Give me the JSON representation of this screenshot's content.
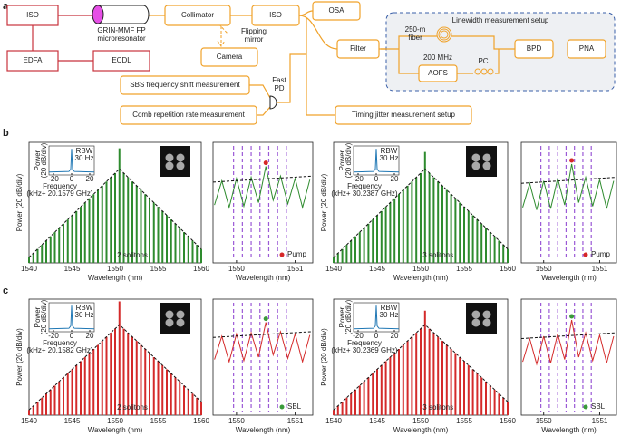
{
  "panel_labels": [
    "a",
    "b",
    "c"
  ],
  "diagram": {
    "nodes": [
      {
        "label": "ISO"
      },
      {
        "label": "EDFA"
      },
      {
        "label": "ECDL"
      },
      {
        "lines": [
          "GRIN-MMF FP",
          "microresonator"
        ]
      },
      {
        "label": "Collimator"
      },
      {
        "label": "ISO"
      },
      {
        "label": "OSA"
      },
      {
        "lines": [
          "Flipping",
          "mirror"
        ]
      },
      {
        "label": "Camera"
      },
      {
        "label": "Filter"
      },
      {
        "label": "Linewidth measurement setup"
      },
      {
        "lines": [
          "250-m",
          "fiber"
        ]
      },
      {
        "label": "200 MHz"
      },
      {
        "label": "AOFS"
      },
      {
        "label": "PC"
      },
      {
        "label": "BPD"
      },
      {
        "label": "PNA"
      },
      {
        "label": "SBS frequency shift measurement"
      },
      {
        "label": "Comb repetition rate measurement"
      },
      {
        "lines": [
          "Fast",
          "PD"
        ]
      },
      {
        "label": "Timing jitter measurement setup"
      }
    ]
  },
  "chart_data": [
    {
      "type": "comb",
      "color": "#2e8b2e",
      "xlabel": "Wavelength (nm)",
      "ylabel": "Power (20 dB/div)",
      "annotation": "2 solitons",
      "xlim": [
        1540,
        1560
      ],
      "ylim": [
        0,
        100
      ],
      "xticks": [
        1540,
        1545,
        1550,
        1555,
        1560
      ],
      "x": [
        1540,
        1540.5,
        1541,
        1541.5,
        1542,
        1542.5,
        1543,
        1543.5,
        1544,
        1544.5,
        1545,
        1545.5,
        1546,
        1546.5,
        1547,
        1547.5,
        1548,
        1548.5,
        1549,
        1549.5,
        1550,
        1550.5,
        1551,
        1551.5,
        1552,
        1552.5,
        1553,
        1553.5,
        1554,
        1554.5,
        1555,
        1555.5,
        1556,
        1556.5,
        1557,
        1557.5,
        1558,
        1558.5,
        1559,
        1559.5,
        1560
      ],
      "values": [
        4.5,
        8,
        11.5,
        15,
        18.5,
        22,
        25.5,
        29,
        32.5,
        36,
        39.5,
        43,
        46.5,
        50,
        53.5,
        57,
        60.5,
        64,
        67.5,
        71,
        74.5,
        95,
        74.5,
        71,
        67.5,
        64,
        60.5,
        57,
        53.5,
        50,
        46.5,
        43,
        39.5,
        36,
        32.5,
        29,
        25.5,
        22,
        18.5,
        15,
        11.5
      ],
      "fit": {
        "x": [
          1540,
          1550.5,
          1560
        ],
        "values": [
          4.5,
          78,
          11.5
        ]
      },
      "inset": {
        "type": "line",
        "color": "#1f77b4",
        "x": [
          -25,
          -3,
          -1,
          0,
          1,
          3,
          25
        ],
        "values": [
          10,
          12,
          20,
          90,
          20,
          12,
          10
        ],
        "xlim": [
          -25,
          25
        ],
        "ylim": [
          0,
          100
        ],
        "xticks": [
          -20,
          0,
          20
        ],
        "ylabel": [
          "Power",
          "(20 dB/div)"
        ],
        "xlabel": [
          "Frequency",
          "(kHz+ 20.1579 GHz)"
        ],
        "text": [
          "RBW",
          "30 Hz"
        ]
      }
    },
    {
      "type": "line",
      "color": "#2e8b2e",
      "xlabel": "Wavelength (nm)",
      "xlim": [
        1549.6,
        1551.3
      ],
      "ylim": [
        0,
        100
      ],
      "xticks": [
        1550,
        1551
      ],
      "x": [
        1549.625,
        1549.75,
        1549.875,
        1550,
        1550.125,
        1550.25,
        1550.375,
        1550.5,
        1550.625,
        1550.75,
        1550.875,
        1551,
        1551.125,
        1551.25
      ],
      "values": [
        48,
        68,
        46,
        70,
        47,
        71,
        50,
        80,
        52,
        72,
        49,
        70,
        46,
        69
      ],
      "fit": {
        "x": [
          1549.6,
          1551.3
        ],
        "values": [
          67,
          72
        ]
      },
      "vlines": [
        1549.95,
        1550.1,
        1550.25,
        1550.4,
        1550.55,
        1550.7,
        1550.85
      ],
      "vline_color": "#9b59d6",
      "marker": {
        "name": "Pump",
        "x": 1550.5,
        "value": 80,
        "color": "#d62728"
      }
    },
    {
      "type": "comb",
      "color": "#2e8b2e",
      "xlabel": "Wavelength (nm)",
      "ylabel": "Power (20 dB/div)",
      "annotation": "3 solitons",
      "xlim": [
        1540,
        1560
      ],
      "ylim": [
        0,
        100
      ],
      "xticks": [
        1540,
        1545,
        1550,
        1555,
        1560
      ],
      "x": [
        1540,
        1540.5,
        1541,
        1541.5,
        1542,
        1542.5,
        1543,
        1543.5,
        1544,
        1544.5,
        1545,
        1545.5,
        1546,
        1546.5,
        1547,
        1547.5,
        1548,
        1548.5,
        1549,
        1549.5,
        1550,
        1550.5,
        1551,
        1551.5,
        1552,
        1552.5,
        1553,
        1553.5,
        1554,
        1554.5,
        1555,
        1555.5,
        1556,
        1556.5,
        1557,
        1557.5,
        1558,
        1558.5,
        1559,
        1559.5,
        1560
      ],
      "values": [
        4.5,
        8,
        11.5,
        15,
        18.5,
        22,
        25.5,
        29,
        32.5,
        36,
        39.5,
        43,
        46.5,
        50,
        53.5,
        57,
        60.5,
        64,
        67.5,
        71,
        74.5,
        92,
        74.5,
        71,
        67.5,
        64,
        60.5,
        57,
        53.5,
        50,
        46.5,
        43,
        39.5,
        36,
        32.5,
        29,
        25.5,
        22,
        18.5,
        15,
        11.5
      ],
      "fit": {
        "x": [
          1540,
          1550.5,
          1560
        ],
        "values": [
          4.5,
          78,
          11.5
        ]
      },
      "inset": {
        "type": "line",
        "color": "#1f77b4",
        "x": [
          -25,
          -3,
          -1,
          0,
          1,
          3,
          25
        ],
        "values": [
          10,
          12,
          20,
          90,
          20,
          12,
          10
        ],
        "xlim": [
          -25,
          25
        ],
        "ylim": [
          0,
          100
        ],
        "xticks": [
          -20,
          0,
          20
        ],
        "ylabel": [
          "Power",
          "(20 dB/div)"
        ],
        "xlabel": [
          "Frequency",
          "(kHz+ 30.2387 GHz)"
        ],
        "text": [
          "RBW",
          "30 Hz"
        ]
      }
    },
    {
      "type": "line",
      "color": "#2e8b2e",
      "xlabel": "Wavelength (nm)",
      "xlim": [
        1549.6,
        1551.3
      ],
      "ylim": [
        0,
        100
      ],
      "xticks": [
        1550,
        1551
      ],
      "x": [
        1549.625,
        1549.75,
        1549.875,
        1550,
        1550.125,
        1550.25,
        1550.375,
        1550.5,
        1550.625,
        1550.75,
        1550.875,
        1551,
        1551.125,
        1551.25
      ],
      "values": [
        46,
        66,
        44,
        68,
        45,
        70,
        48,
        82,
        50,
        71,
        47,
        69,
        45,
        68
      ],
      "fit": {
        "x": [
          1549.6,
          1551.3
        ],
        "values": [
          66,
          71
        ]
      },
      "vlines": [
        1549.95,
        1550.1,
        1550.25,
        1550.4,
        1550.55,
        1550.7,
        1550.85
      ],
      "vline_color": "#9b59d6",
      "marker": {
        "name": "Pump",
        "x": 1550.5,
        "value": 82,
        "color": "#d62728"
      }
    },
    {
      "type": "comb",
      "color": "#d42a2a",
      "xlabel": "Wavelength (nm)",
      "ylabel": "Power (20 dB/div)",
      "annotation": "2 solitons",
      "xlim": [
        1540,
        1560
      ],
      "ylim": [
        0,
        100
      ],
      "xticks": [
        1540,
        1545,
        1550,
        1555,
        1560
      ],
      "x": [
        1540,
        1540.5,
        1541,
        1541.5,
        1542,
        1542.5,
        1543,
        1543.5,
        1544,
        1544.5,
        1545,
        1545.5,
        1546,
        1546.5,
        1547,
        1547.5,
        1548,
        1548.5,
        1549,
        1549.5,
        1550,
        1550.5,
        1551,
        1551.5,
        1552,
        1552.5,
        1553,
        1553.5,
        1554,
        1554.5,
        1555,
        1555.5,
        1556,
        1556.5,
        1557,
        1557.5,
        1558,
        1558.5,
        1559,
        1559.5,
        1560
      ],
      "values": [
        4.5,
        8,
        11.5,
        15,
        18.5,
        22,
        25.5,
        29,
        32.5,
        36,
        39.5,
        43,
        46.5,
        50,
        53.5,
        57,
        60.5,
        64,
        67.5,
        71,
        74.5,
        98,
        74.5,
        71,
        67.5,
        64,
        60.5,
        57,
        53.5,
        50,
        46.5,
        43,
        39.5,
        36,
        32.5,
        29,
        25.5,
        22,
        18.5,
        15,
        11.5
      ],
      "fit": {
        "x": [
          1540,
          1550.5,
          1560
        ],
        "values": [
          4.5,
          78,
          11.5
        ]
      },
      "inset": {
        "type": "line",
        "color": "#1f77b4",
        "x": [
          -25,
          -3,
          -1,
          0,
          1,
          3,
          25
        ],
        "values": [
          10,
          12,
          20,
          90,
          20,
          12,
          10
        ],
        "xlim": [
          -25,
          25
        ],
        "ylim": [
          0,
          100
        ],
        "xticks": [
          -20,
          0,
          20
        ],
        "ylabel": [
          "Power",
          "(20 dB/div)"
        ],
        "xlabel": [
          "Frequency",
          "(kHz+ 20.1582 GHz)"
        ],
        "text": [
          "RBW",
          "30 Hz"
        ]
      }
    },
    {
      "type": "line",
      "color": "#d42a2a",
      "xlabel": "Wavelength (nm)",
      "xlim": [
        1549.6,
        1551.3
      ],
      "ylim": [
        0,
        100
      ],
      "xticks": [
        1550,
        1551
      ],
      "x": [
        1549.625,
        1549.75,
        1549.875,
        1550,
        1550.125,
        1550.25,
        1550.375,
        1550.5,
        1550.625,
        1550.75,
        1550.875,
        1551,
        1551.125,
        1551.25
      ],
      "values": [
        48,
        68,
        46,
        70,
        47,
        71,
        50,
        80,
        52,
        72,
        49,
        70,
        46,
        69
      ],
      "fit": {
        "x": [
          1549.6,
          1551.3
        ],
        "values": [
          67,
          72
        ]
      },
      "vlines": [
        1549.95,
        1550.1,
        1550.25,
        1550.4,
        1550.55,
        1550.7,
        1550.85
      ],
      "vline_color": "#9b59d6",
      "marker": {
        "name": "SBL",
        "x": 1550.5,
        "value": 80,
        "color": "#3a9a3a"
      }
    },
    {
      "type": "comb",
      "color": "#d42a2a",
      "xlabel": "Wavelength (nm)",
      "ylabel": "Power (20 dB/div)",
      "annotation": "3 solitons",
      "xlim": [
        1540,
        1560
      ],
      "ylim": [
        0,
        100
      ],
      "xticks": [
        1540,
        1545,
        1550,
        1555,
        1560
      ],
      "x": [
        1540,
        1540.5,
        1541,
        1541.5,
        1542,
        1542.5,
        1543,
        1543.5,
        1544,
        1544.5,
        1545,
        1545.5,
        1546,
        1546.5,
        1547,
        1547.5,
        1548,
        1548.5,
        1549,
        1549.5,
        1550,
        1550.5,
        1551,
        1551.5,
        1552,
        1552.5,
        1553,
        1553.5,
        1554,
        1554.5,
        1555,
        1555.5,
        1556,
        1556.5,
        1557,
        1557.5,
        1558,
        1558.5,
        1559,
        1559.5,
        1560
      ],
      "values": [
        4.5,
        8,
        11.5,
        15,
        18.5,
        22,
        25.5,
        29,
        32.5,
        36,
        39.5,
        43,
        46.5,
        50,
        53.5,
        57,
        60.5,
        64,
        67.5,
        71,
        74.5,
        90,
        74.5,
        71,
        67.5,
        64,
        60.5,
        57,
        53.5,
        50,
        46.5,
        43,
        39.5,
        36,
        32.5,
        29,
        25.5,
        22,
        18.5,
        15,
        11.5
      ],
      "fit": {
        "x": [
          1540,
          1550.5,
          1560
        ],
        "values": [
          4.5,
          78,
          11.5
        ]
      },
      "inset": {
        "type": "line",
        "color": "#1f77b4",
        "x": [
          -25,
          -3,
          -1,
          0,
          1,
          3,
          25
        ],
        "values": [
          10,
          12,
          20,
          90,
          20,
          12,
          10
        ],
        "xlim": [
          -25,
          25
        ],
        "ylim": [
          0,
          100
        ],
        "xticks": [
          -20,
          0,
          20
        ],
        "ylabel": [
          "Power",
          "(20 dB/div)"
        ],
        "xlabel": [
          "Frequency",
          "(kHz+ 30.2369 GHz)"
        ],
        "text": [
          "RBW",
          "30 Hz"
        ]
      }
    },
    {
      "type": "line",
      "color": "#d42a2a",
      "xlabel": "Wavelength (nm)",
      "xlim": [
        1549.6,
        1551.3
      ],
      "ylim": [
        0,
        100
      ],
      "xticks": [
        1550,
        1551
      ],
      "x": [
        1549.625,
        1549.75,
        1549.875,
        1550,
        1550.125,
        1550.25,
        1550.375,
        1550.5,
        1550.625,
        1550.75,
        1550.875,
        1551,
        1551.125,
        1551.25
      ],
      "values": [
        46,
        66,
        44,
        68,
        45,
        70,
        48,
        82,
        50,
        71,
        47,
        69,
        45,
        68
      ],
      "fit": {
        "x": [
          1549.6,
          1551.3
        ],
        "values": [
          66,
          71
        ]
      },
      "vlines": [
        1549.95,
        1550.1,
        1550.25,
        1550.4,
        1550.55,
        1550.7,
        1550.85
      ],
      "vline_color": "#9b59d6",
      "marker": {
        "name": "SBL",
        "x": 1550.5,
        "value": 82,
        "color": "#3a9a3a"
      }
    }
  ]
}
